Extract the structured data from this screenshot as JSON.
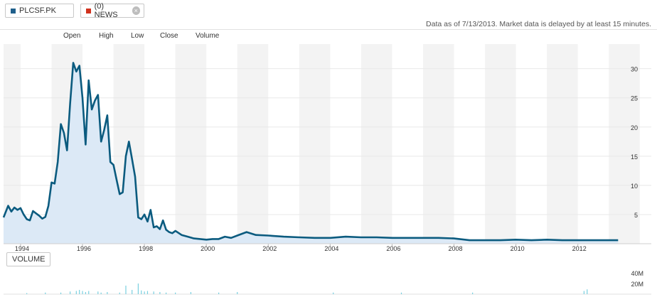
{
  "header": {
    "ticker_chip": {
      "label": "PLCSF.PK",
      "color": "#1f5f8b"
    },
    "news_chip": {
      "label": "(0) NEWS",
      "color": "#d0311d"
    },
    "close_icon": "×",
    "as_of": "Data as of 7/13/2013. Market data is delayed by at least 15 minutes."
  },
  "legend": {
    "open": "Open",
    "high": "High",
    "low": "Low",
    "close": "Close",
    "volume": "Volume"
  },
  "volume_tag": "VOLUME",
  "chart_data": [
    {
      "type": "area",
      "x_tick_labels": [
        "1994",
        "1996",
        "1998",
        "2000",
        "2002",
        "2004",
        "2006",
        "2008",
        "2010",
        "2012"
      ],
      "y_tick_labels": [
        "5",
        "10",
        "15",
        "20",
        "25",
        "30"
      ],
      "xlim": [
        1993.45,
        2013.5
      ],
      "ylim": [
        0,
        33
      ],
      "line_color": "#0b5b7f",
      "fill_color": "#dce9f6",
      "series": [
        {
          "x": [
            1993.45,
            1993.6,
            1993.7,
            1993.8,
            1993.9,
            1994.0,
            1994.1,
            1994.2,
            1994.3,
            1994.4,
            1994.5,
            1994.6,
            1994.7,
            1994.8,
            1994.9,
            1995.0,
            1995.1,
            1995.2,
            1995.3,
            1995.4,
            1995.5,
            1995.6,
            1995.7,
            1995.8,
            1995.9,
            1996.0,
            1996.1,
            1996.2,
            1996.3,
            1996.4,
            1996.5,
            1996.6,
            1996.7,
            1996.8,
            1996.9,
            1997.0,
            1997.1,
            1997.2,
            1997.3,
            1997.4,
            1997.5,
            1997.6,
            1997.7,
            1997.8,
            1997.9,
            1998.0,
            1998.1,
            1998.2,
            1998.3,
            1998.4,
            1998.5,
            1998.6,
            1998.7,
            1998.8,
            1998.9,
            1999.0,
            1999.2,
            1999.4,
            1999.6,
            1999.8,
            2000.0,
            2000.2,
            2000.4,
            2000.6,
            2000.8,
            2001.0,
            2001.3,
            2001.6,
            2002.0,
            2002.5,
            2003.0,
            2003.5,
            2004.0,
            2004.5,
            2005.0,
            2005.5,
            2006.0,
            2006.5,
            2007.0,
            2007.5,
            2008.0,
            2008.5,
            2009.0,
            2009.5,
            2010.0,
            2010.5,
            2011.0,
            2011.5,
            2012.0,
            2012.5,
            2013.0,
            2013.3
          ],
          "y": [
            4.5,
            6.5,
            5.5,
            6.2,
            5.8,
            6.1,
            5.0,
            4.2,
            4.0,
            5.6,
            5.2,
            4.8,
            4.3,
            4.6,
            6.5,
            10.5,
            10.3,
            14.0,
            20.5,
            19.0,
            16.0,
            24.0,
            31.0,
            29.5,
            30.5,
            25.0,
            17.0,
            28.0,
            23.0,
            24.5,
            25.5,
            17.5,
            19.5,
            22.0,
            14.0,
            13.5,
            11.0,
            8.5,
            8.8,
            15.0,
            17.5,
            14.5,
            11.5,
            4.5,
            4.2,
            5.0,
            3.8,
            5.8,
            2.8,
            3.0,
            2.5,
            4.0,
            2.4,
            2.0,
            1.8,
            2.2,
            1.5,
            1.2,
            0.9,
            0.8,
            0.7,
            0.8,
            0.8,
            1.2,
            1.0,
            1.4,
            2.0,
            1.5,
            1.4,
            1.2,
            1.1,
            1.0,
            1.0,
            1.2,
            1.1,
            1.1,
            1.0,
            1.0,
            1.0,
            1.0,
            0.9,
            0.6,
            0.6,
            0.6,
            0.7,
            0.6,
            0.7,
            0.6,
            0.6,
            0.6,
            0.6,
            0.6
          ]
        }
      ]
    },
    {
      "type": "bar",
      "name": "volume",
      "y_tick_labels": [
        "40M",
        "20M"
      ],
      "xlim": [
        1993.45,
        2013.5
      ],
      "ylim": [
        0,
        40
      ],
      "bar_color": "#7ad0e0",
      "x": [
        1994.2,
        1994.8,
        1995.3,
        1995.6,
        1995.8,
        1995.9,
        1996.0,
        1996.1,
        1996.2,
        1996.5,
        1996.6,
        1996.8,
        1997.2,
        1997.4,
        1997.6,
        1997.8,
        1997.9,
        1998.0,
        1998.1,
        1998.3,
        1998.5,
        1998.7,
        1999.0,
        1999.5,
        2000.4,
        2001.0,
        2004.1,
        2006.3,
        2008.6,
        2012.2,
        2012.3
      ],
      "values": [
        2,
        3,
        3,
        5,
        6,
        8,
        6,
        4,
        6,
        5,
        3,
        4,
        3,
        16,
        8,
        20,
        7,
        5,
        6,
        5,
        4,
        3,
        3,
        4,
        3,
        4,
        3,
        3,
        3,
        6,
        9
      ]
    }
  ]
}
